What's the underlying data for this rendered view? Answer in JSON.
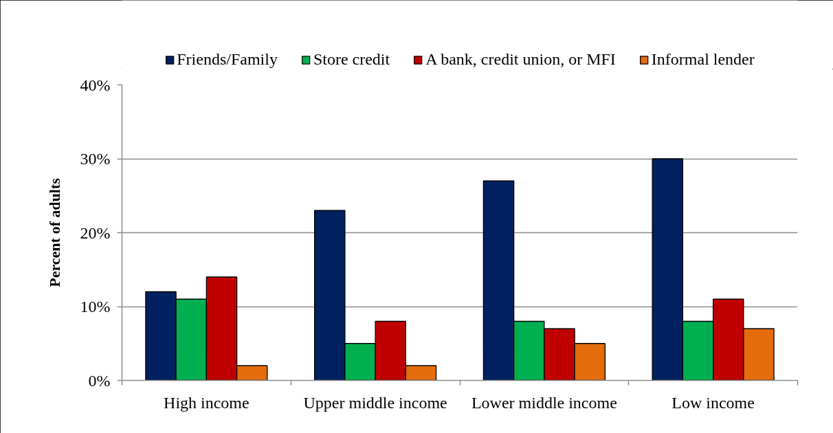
{
  "chart_data": {
    "type": "bar",
    "ylabel": "Percent of adults",
    "categories": [
      "High income",
      "Upper middle income",
      "Lower middle income",
      "Low income"
    ],
    "series": [
      {
        "name": "Friends/Family",
        "color": "#002060",
        "values": [
          12,
          23,
          27,
          30
        ]
      },
      {
        "name": "Store credit",
        "color": "#00b050",
        "values": [
          11,
          5,
          8,
          8
        ]
      },
      {
        "name": "A bank, credit union, or MFI",
        "color": "#c00000",
        "values": [
          14,
          8,
          7,
          11
        ]
      },
      {
        "name": "Informal lender",
        "color": "#e46c0a",
        "values": [
          2,
          2,
          5,
          7
        ]
      }
    ],
    "ylim": [
      0,
      40
    ],
    "yticks": [
      {
        "value": 0,
        "label": "0%"
      },
      {
        "value": 10,
        "label": "10%"
      },
      {
        "value": 20,
        "label": "20%"
      },
      {
        "value": 30,
        "label": "30%"
      },
      {
        "value": 40,
        "label": "40%"
      }
    ],
    "grid": "y",
    "legend": "top"
  }
}
